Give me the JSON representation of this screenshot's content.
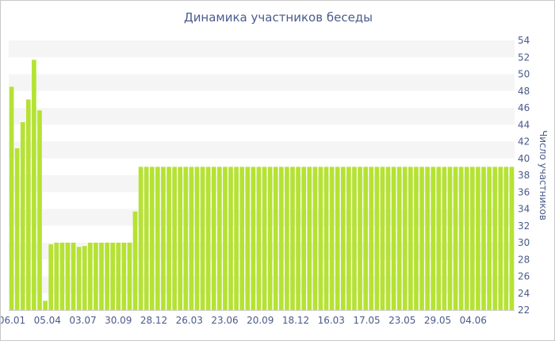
{
  "chart_data": {
    "type": "bar",
    "title": "Динамика участников беседы",
    "xlabel": "",
    "ylabel": "Число участников",
    "ylim": [
      22,
      54
    ],
    "y_ticks": [
      22,
      24,
      26,
      28,
      30,
      32,
      34,
      36,
      38,
      40,
      42,
      44,
      46,
      48,
      50,
      52,
      54
    ],
    "x_tick_labels": [
      "06.01",
      "05.04",
      "03.07",
      "30.09",
      "28.12",
      "26.03",
      "23.06",
      "20.09",
      "18.12",
      "16.03",
      "17.05",
      "23.05",
      "29.05",
      "04.06"
    ],
    "y_axis_position": "right",
    "grid": "horizontal bands",
    "colors": {
      "bar": "#b5e233",
      "band": "#f5f5f5",
      "text": "#4a5b8c"
    },
    "values": [
      48.5,
      41.2,
      44.3,
      47.0,
      51.7,
      45.7,
      23.1,
      29.8,
      30.0,
      30.0,
      30.0,
      30.0,
      29.5,
      29.6,
      30.0,
      30.0,
      30.0,
      30.0,
      30.0,
      30.0,
      30.0,
      30.0,
      33.7,
      39.0,
      39.0,
      39.0,
      39.0,
      39.0,
      39.0,
      39.0,
      39.0,
      39.0,
      39.0,
      39.0,
      39.0,
      39.0,
      39.0,
      39.0,
      39.0,
      39.0,
      39.0,
      39.0,
      39.0,
      39.0,
      39.0,
      39.0,
      39.0,
      39.0,
      39.0,
      39.0,
      39.0,
      39.0,
      39.0,
      39.0,
      39.0,
      39.0,
      39.0,
      39.0,
      39.0,
      39.0,
      39.0,
      39.0,
      39.0,
      39.0,
      39.0,
      39.0,
      39.0,
      39.0,
      39.0,
      39.0,
      39.0,
      39.0,
      39.0,
      39.0,
      39.0,
      39.0,
      39.0,
      39.0,
      39.0,
      39.0,
      39.0,
      39.0,
      39.0,
      39.0,
      39.0,
      39.0,
      39.0,
      39.0,
      39.0,
      39.0
    ]
  }
}
